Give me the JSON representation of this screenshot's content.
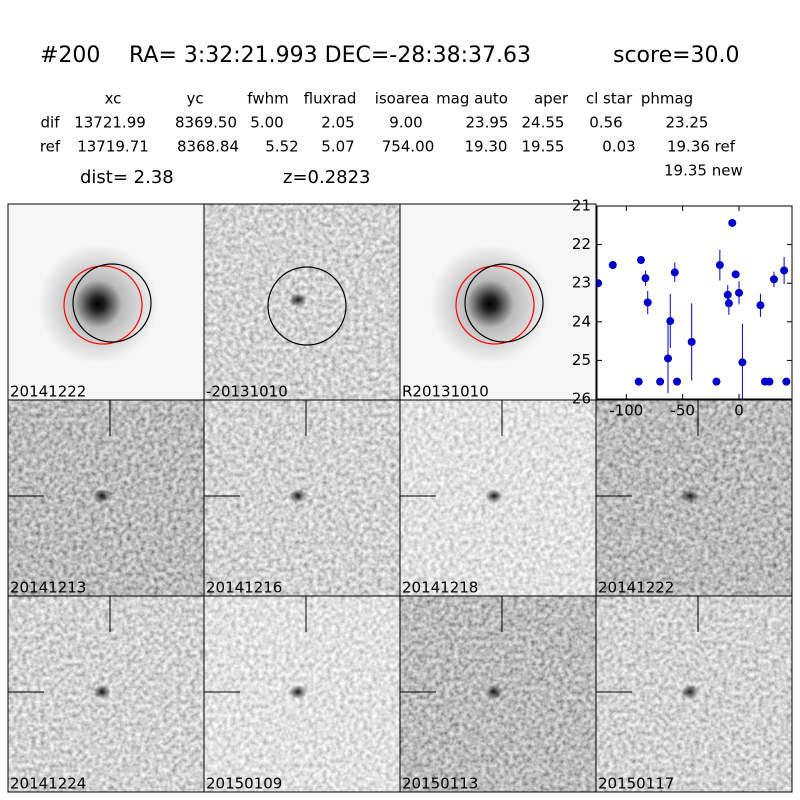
{
  "header": {
    "id": "#200",
    "coords": "RA= 3:32:21.993 DEC=-28:38:37.63",
    "score": "score=30.0"
  },
  "table": {
    "columns": [
      "xc",
      "yc",
      "fwhm",
      "fluxrad",
      "isoarea",
      "mag auto",
      "aper",
      "cl star",
      "phmag"
    ],
    "rows": [
      [
        "dif",
        "13721.99",
        "8369.50",
        "5.00",
        "2.05",
        "9.00",
        "23.95",
        "24.55",
        "0.56",
        "23.25"
      ],
      [
        "ref",
        "13719.71",
        "8368.84",
        "5.52",
        "5.07",
        "754.00",
        "19.30",
        "19.55",
        "0.03",
        "19.36 ref"
      ]
    ],
    "note": "19.35 new"
  },
  "dist": "dist=  2.38",
  "z": "z=0.2823",
  "stamps": [
    {
      "label": "20141222"
    },
    {
      "label": "-20131010"
    },
    {
      "label": "R20131010"
    },
    {
      "label": "20141213"
    },
    {
      "label": "20141216"
    },
    {
      "label": "20141218"
    },
    {
      "label": "20141222",
      "color": "#ff0000"
    },
    {
      "label": "20141224"
    },
    {
      "label": "20150109"
    },
    {
      "label": "20150113"
    },
    {
      "label": "20150117"
    }
  ],
  "chart_data": {
    "type": "scatter",
    "color": "#0000cc",
    "xlim": [
      -126,
      47
    ],
    "ylim": [
      26,
      21
    ],
    "xticks": [
      -100,
      -50,
      0
    ],
    "yticks": [
      21,
      22,
      23,
      24,
      25,
      26
    ],
    "x": [
      -125,
      -112,
      -87,
      -89,
      -83,
      -81,
      -70,
      -61,
      -63,
      -57,
      -55,
      -42,
      -20,
      -17,
      -10,
      -9,
      -6,
      -3,
      0,
      3,
      19,
      23,
      27,
      31,
      40,
      42
    ],
    "values": [
      23.0,
      22.53,
      22.4,
      25.55,
      22.87,
      23.5,
      25.55,
      23.98,
      24.95,
      22.72,
      25.55,
      24.52,
      25.55,
      22.53,
      23.3,
      23.52,
      21.44,
      22.77,
      23.25,
      25.05,
      23.57,
      25.55,
      25.55,
      22.9,
      22.67,
      25.55
    ],
    "errors": [
      0.05,
      0.1,
      0.1,
      0.05,
      0.2,
      0.3,
      0.05,
      0.7,
      0.9,
      0.25,
      0.05,
      1.0,
      0.05,
      0.4,
      0.25,
      0.3,
      0.05,
      0.1,
      0.3,
      1.0,
      0.3,
      0.05,
      0.05,
      0.2,
      0.35,
      0.05
    ]
  }
}
